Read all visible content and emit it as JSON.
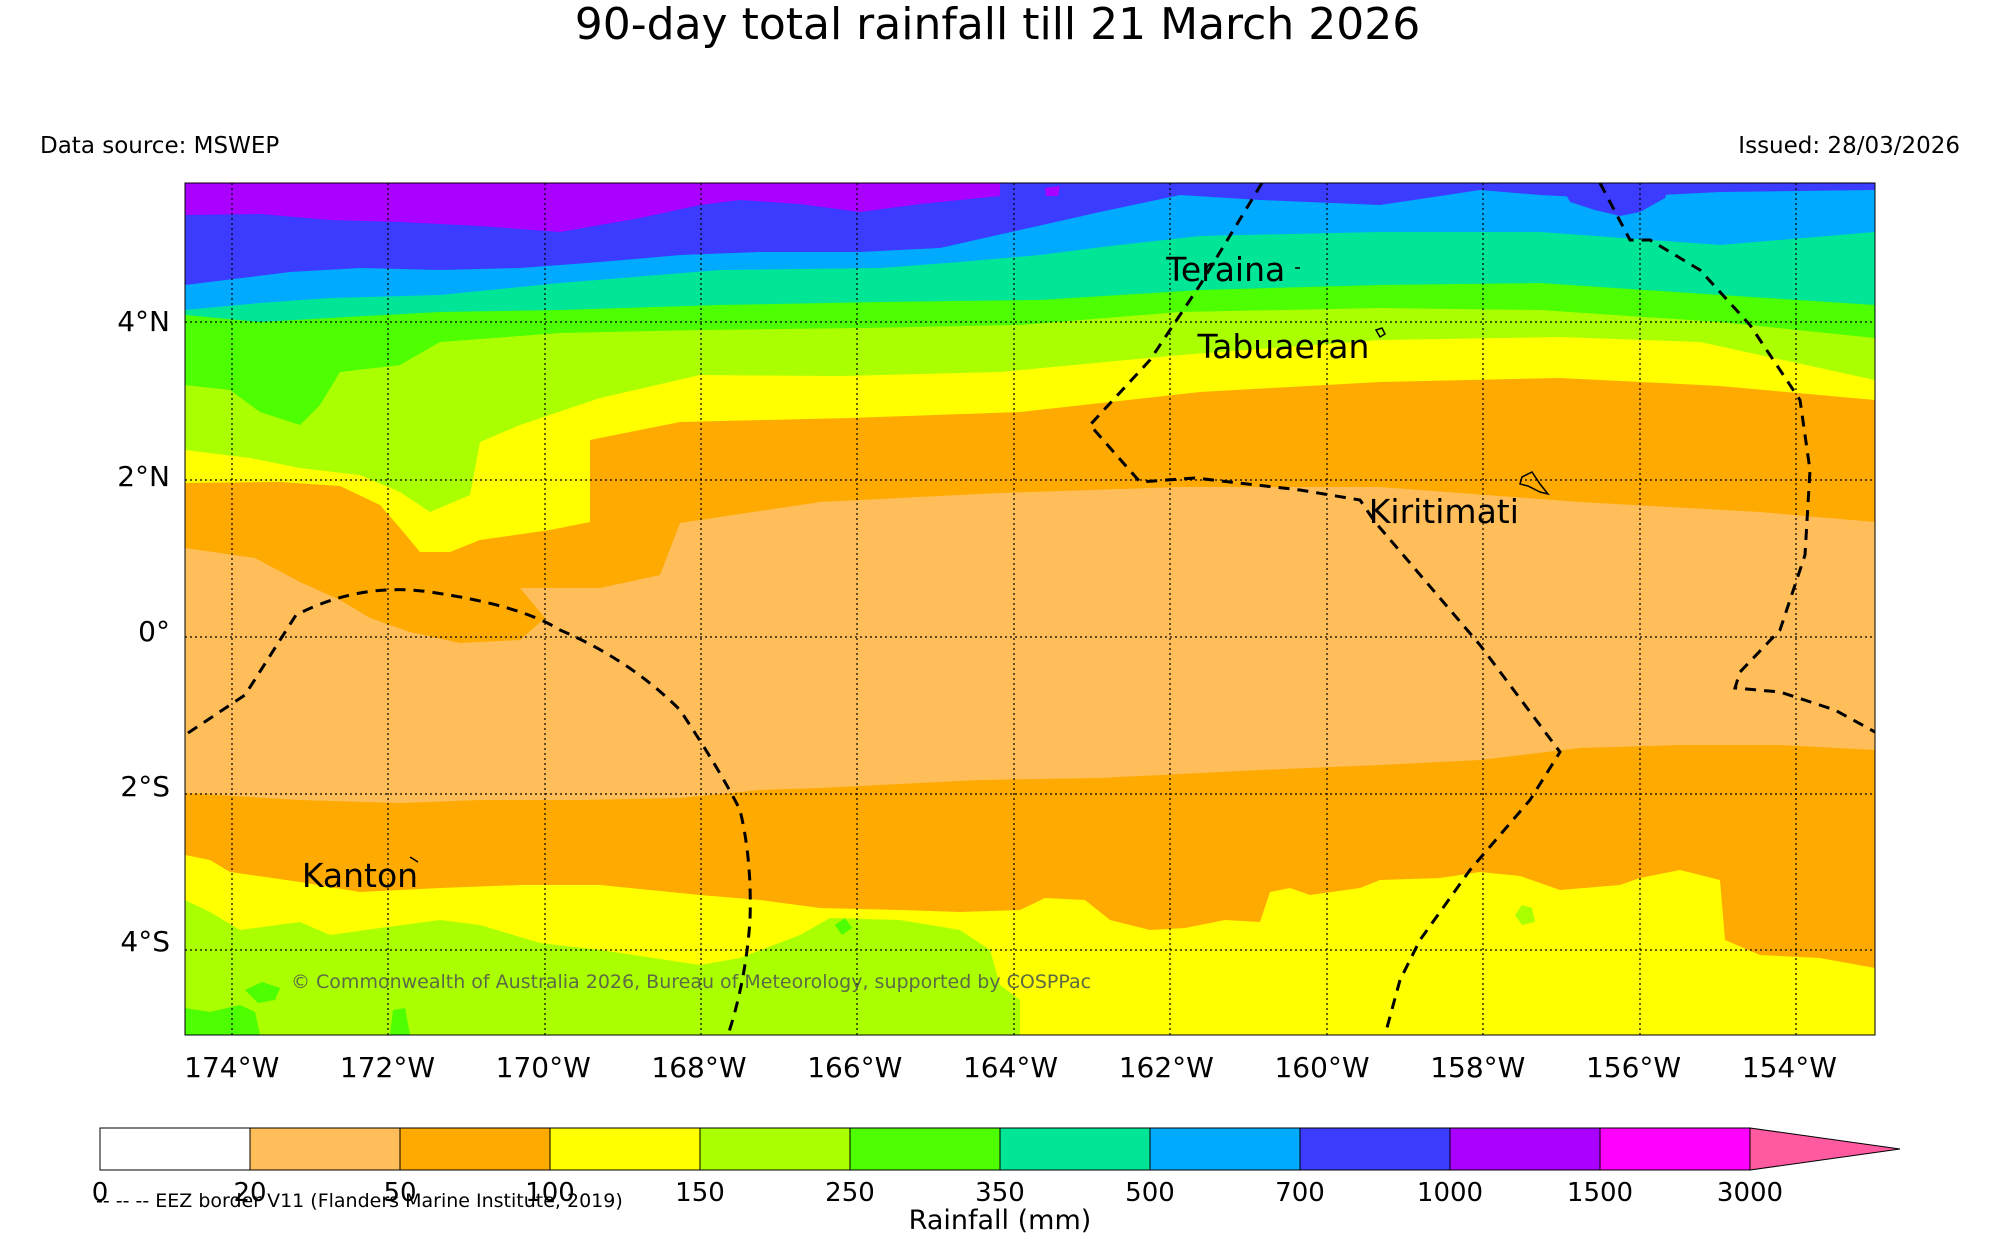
{
  "title": "90-day total rainfall till 21 March 2026",
  "data_source": "Data source: MSWEP",
  "issued": "Issued: 28/03/2026",
  "copyright": "© Commonwealth of Australia 2026, Bureau of Meteorology, supported by COSPPac",
  "eez_note": "-- -- -- EEZ border V11 (Flanders Marine Institute, 2019)",
  "colorbar": {
    "title": "Rainfall (mm)",
    "bins": [
      {
        "from": "0",
        "to": "20",
        "color": "#ffffff"
      },
      {
        "from": "20",
        "to": "50",
        "color": "#ffbe5a"
      },
      {
        "from": "50",
        "to": "100",
        "color": "#ffaa00"
      },
      {
        "from": "100",
        "to": "150",
        "color": "#ffff00"
      },
      {
        "from": "150",
        "to": "250",
        "color": "#aaff00"
      },
      {
        "from": "250",
        "to": "350",
        "color": "#4dff00"
      },
      {
        "from": "350",
        "to": "500",
        "color": "#00e696"
      },
      {
        "from": "500",
        "to": "700",
        "color": "#00aaff"
      },
      {
        "from": "700",
        "to": "1000",
        "color": "#3c3cff"
      },
      {
        "from": "1000",
        "to": "1500",
        "color": "#aa00ff"
      },
      {
        "from": "1500",
        "to": "3000",
        "color": "#ff00ff"
      }
    ],
    "tick_labels": [
      "0",
      "20",
      "50",
      "100",
      "150",
      "250",
      "350",
      "500",
      "700",
      "1000",
      "1500",
      "3000"
    ],
    "extend_color": "#ff5aa0"
  },
  "map": {
    "lon_range": [
      -174.6,
      -152.9
    ],
    "lat_range": [
      -5.2,
      5.8
    ],
    "lon_labels": [
      {
        "value": -174,
        "text": "174°W"
      },
      {
        "value": -172,
        "text": "172°W"
      },
      {
        "value": -170,
        "text": "170°W"
      },
      {
        "value": -168,
        "text": "168°W"
      },
      {
        "value": -166,
        "text": "166°W"
      },
      {
        "value": -164,
        "text": "164°W"
      },
      {
        "value": -162,
        "text": "162°W"
      },
      {
        "value": -160,
        "text": "160°W"
      },
      {
        "value": -158,
        "text": "158°W"
      },
      {
        "value": -156,
        "text": "156°W"
      },
      {
        "value": -154,
        "text": "154°W"
      }
    ],
    "lat_labels": [
      {
        "value": 4,
        "text": "4°N"
      },
      {
        "value": 2,
        "text": "2°N"
      },
      {
        "value": 0,
        "text": "0°"
      },
      {
        "value": -2,
        "text": "2°S"
      },
      {
        "value": -4,
        "text": "4°S"
      }
    ],
    "places": [
      {
        "name": "Teraina",
        "lon": -162.0,
        "lat": 4.68
      },
      {
        "name": "Tabuaeran",
        "lon": -161.6,
        "lat": 3.68
      },
      {
        "name": "Kiritimati",
        "lon": -159.4,
        "lat": 1.55
      },
      {
        "name": "Kanton",
        "lon": -173.1,
        "lat": -3.15
      }
    ]
  }
}
